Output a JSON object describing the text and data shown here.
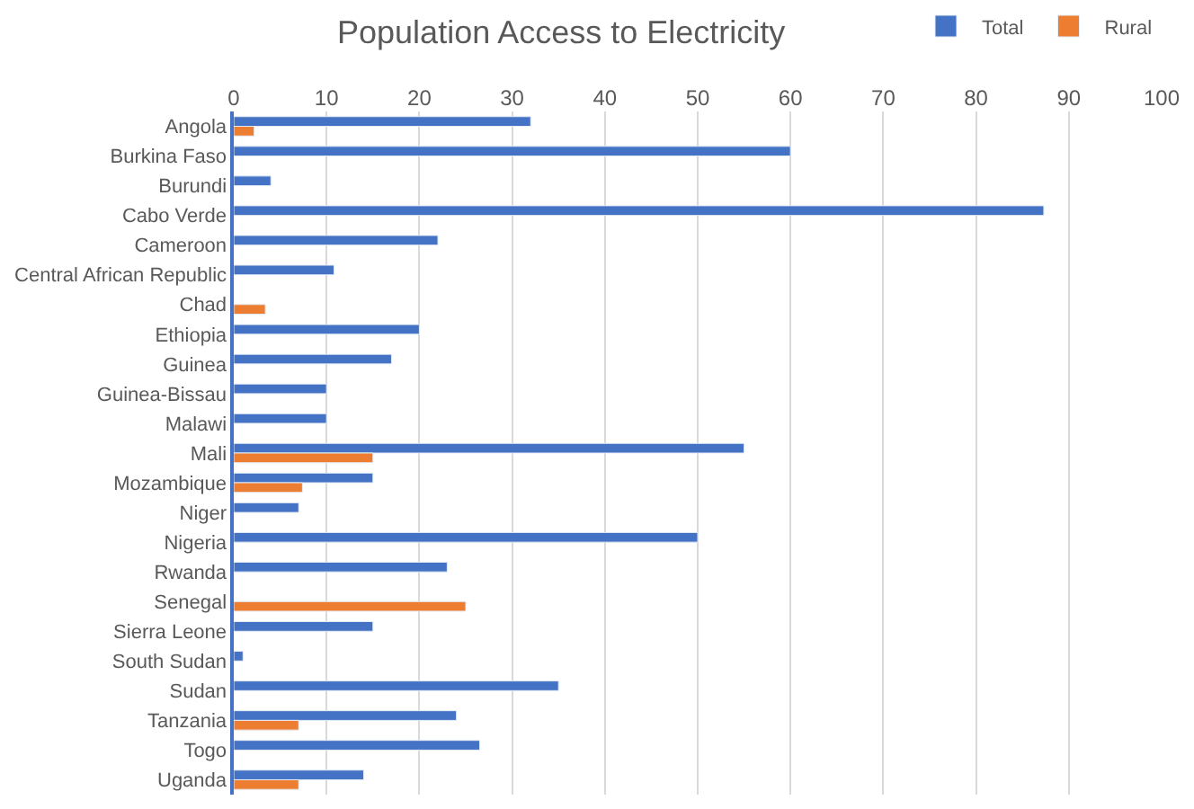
{
  "chart_data": {
    "type": "bar",
    "orientation": "horizontal",
    "title": "Population Access to Electricity",
    "categories": [
      "Angola",
      "Burkina Faso",
      "Burundi",
      "Cabo Verde",
      "Cameroon",
      "Central African Republic",
      "Chad",
      "Ethiopia",
      "Guinea",
      "Guinea-Bissau",
      "Malawi",
      "Mali",
      "Mozambique",
      "Niger",
      "Nigeria",
      "Rwanda",
      "Senegal",
      "Sierra Leone",
      "South Sudan",
      "Sudan",
      "Tanzania",
      "Togo",
      "Uganda"
    ],
    "series": [
      {
        "name": "Total",
        "color": "#4472c4",
        "values": [
          32,
          60,
          4,
          87.3,
          22,
          10.8,
          null,
          20,
          17,
          10,
          10,
          55,
          15,
          7,
          50,
          23,
          null,
          15,
          1,
          35,
          24,
          26.5,
          14
        ]
      },
      {
        "name": "Rural",
        "color": "#ed7d31",
        "values": [
          2.2,
          null,
          null,
          null,
          null,
          null,
          3.4,
          null,
          null,
          null,
          null,
          15,
          7.4,
          null,
          null,
          null,
          25,
          null,
          null,
          null,
          7,
          null,
          7
        ]
      }
    ],
    "xlim": [
      0,
      100
    ],
    "xticks": [
      0,
      10,
      20,
      30,
      40,
      50,
      60,
      70,
      80,
      90,
      100
    ],
    "grid": "x",
    "legend": "top right"
  }
}
